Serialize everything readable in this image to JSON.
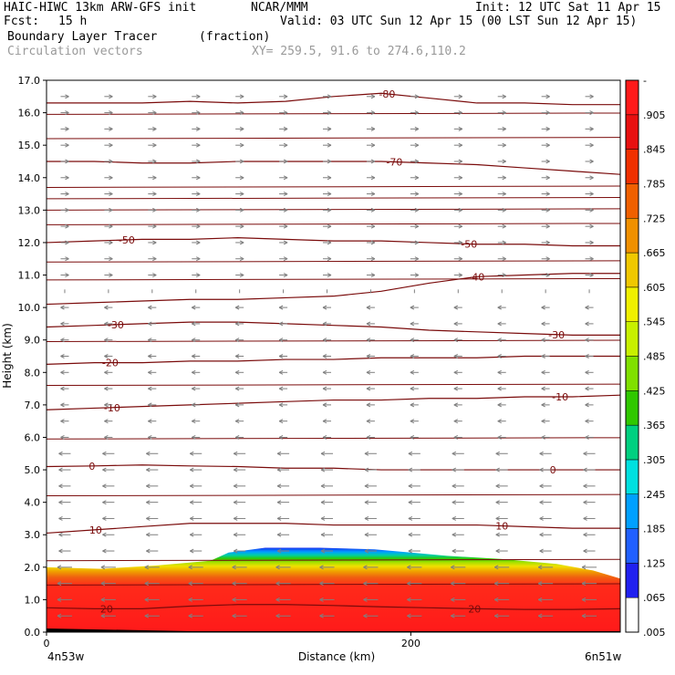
{
  "header": {
    "model": "HAIC-HIWC 13km ARW-GFS init",
    "org": "NCAR/MMM",
    "init": "Init: 12 UTC Sat 11 Apr 15",
    "fcst_label": "Fcst:",
    "fcst_value": "15 h",
    "valid": "Valid: 03 UTC Sun 12 Apr 15 (00 LST Sun 12 Apr 15)",
    "field": "Boundary Layer Tracer",
    "field_units": "(fraction)",
    "overlay": "Circulation vectors",
    "xy_range": "XY= 259.5, 91.6 to 274.6,110.2"
  },
  "colors": {
    "contour": "#7a0b0b",
    "vector": "#7f7f7f",
    "colorbar": [
      "#ffffff",
      "#2020f0",
      "#2060ff",
      "#00a0ff",
      "#00e0e0",
      "#00d080",
      "#30c800",
      "#80e000",
      "#c8f000",
      "#f0f000",
      "#f0c800",
      "#f09000",
      "#f06000",
      "#f03000",
      "#e81010",
      "#ff1a1a"
    ]
  },
  "chart_data": {
    "type": "heatmap",
    "title": "Boundary Layer Tracer",
    "units": "(fraction)",
    "xlabel": "Distance (km)",
    "ylabel": "Height (km)",
    "xlim": [
      0,
      315
    ],
    "ylim": [
      0,
      17
    ],
    "x_ticks": [
      0,
      200
    ],
    "x_tick_labels": [
      "0",
      "200"
    ],
    "y_ticks": [
      0.0,
      1.0,
      2.0,
      3.0,
      4.0,
      5.0,
      6.0,
      7.0,
      8.0,
      9.0,
      10.0,
      11.0,
      12.0,
      13.0,
      14.0,
      15.0,
      16.0,
      17.0
    ],
    "y_tick_labels": [
      "0.0",
      "1.0",
      "2.0",
      "3.0",
      "4.0",
      "5.0",
      "6.0",
      "7.0",
      "8.0",
      "9.0",
      "10.0",
      "11.0",
      "12.0",
      "13.0",
      "14.0",
      "15.0",
      "16.0",
      "17.0"
    ],
    "x_endpoint_labels": [
      "4n53w",
      "6n51w"
    ],
    "colorbar_labels": [
      "-",
      ".905",
      ".845",
      ".785",
      ".725",
      ".665",
      ".605",
      ".545",
      ".485",
      ".425",
      ".365",
      ".305",
      ".245",
      ".185",
      ".125",
      ".065",
      ".005"
    ],
    "tracer_top_km": [
      [
        0,
        2.0
      ],
      [
        30,
        1.95
      ],
      [
        60,
        2.05
      ],
      [
        90,
        2.2
      ],
      [
        100,
        2.45
      ],
      [
        120,
        2.6
      ],
      [
        150,
        2.6
      ],
      [
        180,
        2.55
      ],
      [
        200,
        2.45
      ],
      [
        220,
        2.35
      ],
      [
        250,
        2.25
      ],
      [
        280,
        2.1
      ],
      [
        300,
        1.9
      ],
      [
        315,
        1.65
      ]
    ],
    "contours_degC": [
      {
        "value": 20,
        "label": "20",
        "y": [
          0.75,
          0.72,
          0.72,
          0.8,
          0.85,
          0.85,
          0.82,
          0.78,
          0.75,
          0.72,
          0.7,
          0.7,
          0.72
        ],
        "label_positions_km": [
          33,
          235
        ]
      },
      {
        "value": 10,
        "label": "10",
        "y": [
          3.05,
          3.15,
          3.25,
          3.35,
          3.35,
          3.35,
          3.3,
          3.3,
          3.3,
          3.3,
          3.25,
          3.2,
          3.2
        ],
        "label_positions_km": [
          27,
          250
        ]
      },
      {
        "value": 0,
        "label": "0",
        "y": [
          5.1,
          5.12,
          5.15,
          5.12,
          5.1,
          5.05,
          5.05,
          5.0,
          5.0,
          5.0,
          5.0,
          5.0,
          5.0
        ],
        "label_positions_km": [
          25,
          278
        ]
      },
      {
        "value": -10,
        "label": "-10",
        "y": [
          6.85,
          6.9,
          6.95,
          7.0,
          7.05,
          7.1,
          7.15,
          7.15,
          7.2,
          7.2,
          7.25,
          7.25,
          7.3
        ],
        "label_positions_km": [
          36,
          282
        ]
      },
      {
        "value": -20,
        "label": "-20",
        "y": [
          8.25,
          8.3,
          8.3,
          8.35,
          8.35,
          8.4,
          8.4,
          8.45,
          8.45,
          8.45,
          8.5,
          8.5,
          8.5
        ],
        "label_positions_km": [
          35
        ]
      },
      {
        "value": -30,
        "label": "-30",
        "y": [
          9.4,
          9.45,
          9.5,
          9.55,
          9.55,
          9.5,
          9.45,
          9.4,
          9.3,
          9.25,
          9.2,
          9.15,
          9.15
        ],
        "label_positions_km": [
          38,
          280
        ]
      },
      {
        "value": -40,
        "label": "-40",
        "y": [
          10.1,
          10.15,
          10.2,
          10.25,
          10.25,
          10.3,
          10.35,
          10.5,
          10.75,
          10.95,
          11.0,
          11.05,
          11.05
        ],
        "label_positions_km": [
          236
        ]
      },
      {
        "value": -50,
        "label": "-50",
        "y": [
          12.0,
          12.05,
          12.1,
          12.1,
          12.15,
          12.1,
          12.05,
          12.05,
          12.0,
          11.95,
          11.95,
          11.9,
          11.9
        ],
        "label_positions_km": [
          44,
          232
        ]
      },
      {
        "value": -70,
        "label": "-70",
        "y": [
          14.5,
          14.5,
          14.45,
          14.45,
          14.5,
          14.5,
          14.5,
          14.5,
          14.45,
          14.4,
          14.3,
          14.2,
          14.1
        ],
        "label_positions_km": [
          191
        ]
      },
      {
        "value": -80,
        "label": "-80",
        "y": [
          16.3,
          16.3,
          16.3,
          16.35,
          16.3,
          16.35,
          16.5,
          16.6,
          16.45,
          16.3,
          16.3,
          16.25,
          16.25
        ],
        "label_positions_km": [
          187
        ]
      }
    ],
    "isotherm_extra_y": [
      1.45,
      2.2,
      4.2,
      5.95,
      7.6,
      8.95,
      10.85,
      11.4,
      12.55,
      13.0,
      13.35,
      13.7,
      15.2,
      15.95
    ],
    "wind_field": {
      "low_level_km": [
        0.5,
        1.0,
        1.5,
        2.0,
        2.5,
        3.0,
        3.5,
        4.0,
        4.5,
        5.0,
        5.5,
        6.0,
        6.5,
        7.0,
        7.5,
        8.0,
        8.5,
        9.0,
        9.5,
        10.0,
        10.5,
        11.0,
        11.5,
        12.0,
        12.5,
        13.0,
        13.5,
        14.0,
        14.5,
        15.0,
        15.5,
        16.0,
        16.5
      ],
      "u_direction_by_level": [
        -1,
        -1,
        -1,
        -1,
        -1,
        -1,
        -1,
        -1,
        -1,
        -1,
        -1,
        -1,
        -1,
        -1,
        -1,
        -1,
        -1,
        -1,
        -1,
        -1,
        0,
        1,
        1,
        1,
        1,
        1,
        1,
        1,
        1,
        1,
        1,
        1,
        1
      ]
    }
  }
}
